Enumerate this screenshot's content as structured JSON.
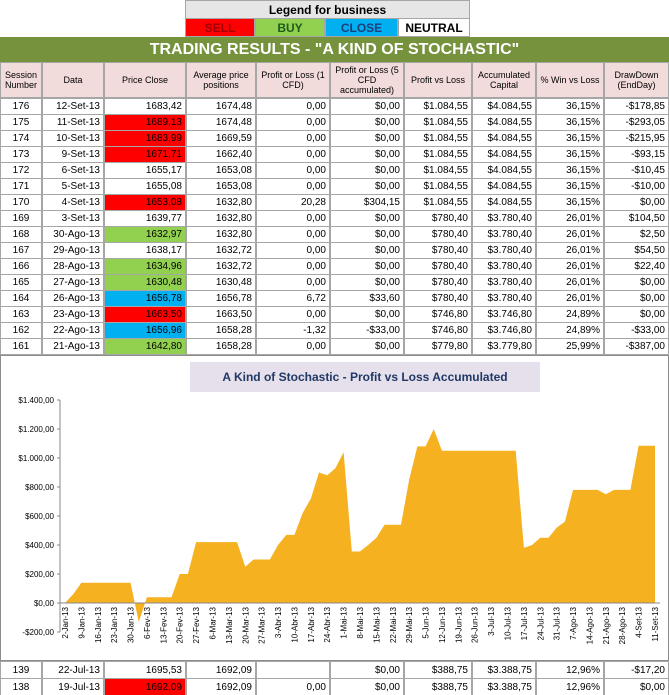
{
  "legend": {
    "title": "Legend for business",
    "items": [
      "SELL",
      "BUY",
      "CLOSE",
      "NEUTRAL"
    ],
    "colors": [
      "#ff0000",
      "#92d050",
      "#00b0f0",
      "#ffffff"
    ],
    "text_colors": [
      "#9c0006",
      "#1e5c1e",
      "#1f3d7a",
      "#000000"
    ]
  },
  "table": {
    "title": "TRADING RESULTS - \"A KIND OF STOCHASTIC\"",
    "headers": [
      "Session Number",
      "Data",
      "Price Close",
      "Average price positions",
      "Profit or Loss (1 CFD)",
      "Profit or Loss (5 CFD accumulated)",
      "Profit vs Loss",
      "Accumulated Capital",
      "% Win vs Loss",
      "DrawDown (EndDay)"
    ],
    "rows": [
      [
        "176",
        "12-Set-13",
        "1683,42",
        "1674,48",
        "0,00",
        "$0,00",
        "$1.084,55",
        "$4.084,55",
        "36,15%",
        "-$178,85"
      ],
      [
        "175",
        "11-Set-13",
        "1689,13",
        "1674,48",
        "0,00",
        "$0,00",
        "$1.084,55",
        "$4.084,55",
        "36,15%",
        "-$293,05"
      ],
      [
        "174",
        "10-Set-13",
        "1683,99",
        "1669,59",
        "0,00",
        "$0,00",
        "$1.084,55",
        "$4.084,55",
        "36,15%",
        "-$215,95"
      ],
      [
        "173",
        "9-Set-13",
        "1671,71",
        "1662,40",
        "0,00",
        "$0,00",
        "$1.084,55",
        "$4.084,55",
        "36,15%",
        "-$93,15"
      ],
      [
        "172",
        "6-Set-13",
        "1655,17",
        "1653,08",
        "0,00",
        "$0,00",
        "$1.084,55",
        "$4.084,55",
        "36,15%",
        "-$10,45"
      ],
      [
        "171",
        "5-Set-13",
        "1655,08",
        "1653,08",
        "0,00",
        "$0,00",
        "$1.084,55",
        "$4.084,55",
        "36,15%",
        "-$10,00"
      ],
      [
        "170",
        "4-Set-13",
        "1653,08",
        "1632,80",
        "20,28",
        "$304,15",
        "$1.084,55",
        "$4.084,55",
        "36,15%",
        "$0,00"
      ],
      [
        "169",
        "3-Set-13",
        "1639,77",
        "1632,80",
        "0,00",
        "$0,00",
        "$780,40",
        "$3.780,40",
        "26,01%",
        "$104,50"
      ],
      [
        "168",
        "30-Ago-13",
        "1632,97",
        "1632,80",
        "0,00",
        "$0,00",
        "$780,40",
        "$3.780,40",
        "26,01%",
        "$2,50"
      ],
      [
        "167",
        "29-Ago-13",
        "1638,17",
        "1632,72",
        "0,00",
        "$0,00",
        "$780,40",
        "$3.780,40",
        "26,01%",
        "$54,50"
      ],
      [
        "166",
        "28-Ago-13",
        "1634,96",
        "1632,72",
        "0,00",
        "$0,00",
        "$780,40",
        "$3.780,40",
        "26,01%",
        "$22,40"
      ],
      [
        "165",
        "27-Ago-13",
        "1630,48",
        "1630,48",
        "0,00",
        "$0,00",
        "$780,40",
        "$3.780,40",
        "26,01%",
        "$0,00"
      ],
      [
        "164",
        "26-Ago-13",
        "1656,78",
        "1656,78",
        "6,72",
        "$33,60",
        "$780,40",
        "$3.780,40",
        "26,01%",
        "$0,00"
      ],
      [
        "163",
        "23-Ago-13",
        "1663,50",
        "1663,50",
        "0,00",
        "$0,00",
        "$746,80",
        "$3.746,80",
        "24,89%",
        "$0,00"
      ],
      [
        "162",
        "22-Ago-13",
        "1656,96",
        "1658,28",
        "-1,32",
        "-$33,00",
        "$746,80",
        "$3.746,80",
        "24,89%",
        "-$33,00"
      ],
      [
        "161",
        "21-Ago-13",
        "1642,80",
        "1658,28",
        "0,00",
        "$0,00",
        "$779,80",
        "$3.779,80",
        "25,99%",
        "-$387,00"
      ]
    ],
    "row_signals": [
      null,
      0,
      0,
      0,
      null,
      null,
      0,
      null,
      1,
      null,
      1,
      1,
      2,
      0,
      2,
      1
    ],
    "bottom_rows": [
      [
        "139",
        "22-Jul-13",
        "1695,53",
        "1692,09",
        null,
        "$0,00",
        "$388,75",
        "$3.388,75",
        "12,96%",
        "-$17,20"
      ],
      [
        "138",
        "19-Jul-13",
        "1692,09",
        "1692,09",
        "0,00",
        "$0,00",
        "$388,75",
        "$3.388,75",
        "12,96%",
        "$0,00"
      ]
    ],
    "bottom_signals": [
      null,
      0
    ]
  },
  "chart_data": {
    "type": "area",
    "title": "A Kind of Stochastic - Profit vs Loss Accumulated",
    "color": "#f5b120",
    "categories": [
      "2-Jan-13",
      null,
      "9-Jan-13",
      null,
      "16-Jan-13",
      null,
      "23-Jan-13",
      null,
      "30-Jan-13",
      null,
      "6-Fev-13",
      null,
      "13-Fev-13",
      null,
      "20-Fev-13",
      null,
      "27-Fev-13",
      null,
      "6-Mar-13",
      null,
      "13-Mar-13",
      null,
      "20-Mar-13",
      null,
      "27-Mar-13",
      null,
      "3-Abr-13",
      null,
      "10-Abr-13",
      null,
      "17-Abr-13",
      null,
      "24-Abr-13",
      null,
      "1-Mai-13",
      null,
      "8-Mai-13",
      null,
      "15-Mai-13",
      null,
      "22-Mai-13",
      null,
      "29-Mai-13",
      null,
      "5-Jun-13",
      null,
      "12-Jun-13",
      null,
      "19-Jun-13",
      null,
      "26-Jun-13",
      null,
      "3-Jul-13",
      null,
      "10-Jul-13",
      null,
      "17-Jul-13",
      null,
      "24-Jul-13",
      null,
      "31-Jul-13",
      null,
      "7-Ago-13",
      null,
      "14-Ago-13",
      null,
      "21-Ago-13",
      null,
      "28-Ago-13",
      null,
      "4-Set-13",
      null,
      "11-Set-13"
    ],
    "values": [
      0,
      60,
      140,
      140,
      140,
      140,
      140,
      140,
      140,
      -130,
      40,
      40,
      40,
      40,
      200,
      200,
      420,
      420,
      420,
      420,
      420,
      420,
      250,
      300,
      300,
      300,
      400,
      470,
      470,
      620,
      720,
      900,
      880,
      930,
      1040,
      355,
      355,
      400,
      450,
      540,
      540,
      540,
      850,
      1080,
      1080,
      1200,
      1050,
      1050,
      1050,
      1050,
      1050,
      1050,
      1050,
      1050,
      1050,
      1050,
      380,
      400,
      450,
      450,
      520,
      560,
      780,
      780,
      780,
      780,
      750,
      780,
      780,
      780,
      1084.55,
      1084.55,
      1084.55
    ],
    "ylim": [
      -200,
      1400
    ],
    "yticks": [
      {
        "value": -200,
        "label": "-$200,00"
      },
      {
        "value": 0,
        "label": "$0,00"
      },
      {
        "value": 200,
        "label": "$200,00"
      },
      {
        "value": 400,
        "label": "$400,00"
      },
      {
        "value": 600,
        "label": "$600,00"
      },
      {
        "value": 800,
        "label": "$800,00"
      },
      {
        "value": 1000,
        "label": "$1.000,00"
      },
      {
        "value": 1200,
        "label": "$1.200,00"
      },
      {
        "value": 1400,
        "label": "$1.400,00"
      }
    ]
  }
}
